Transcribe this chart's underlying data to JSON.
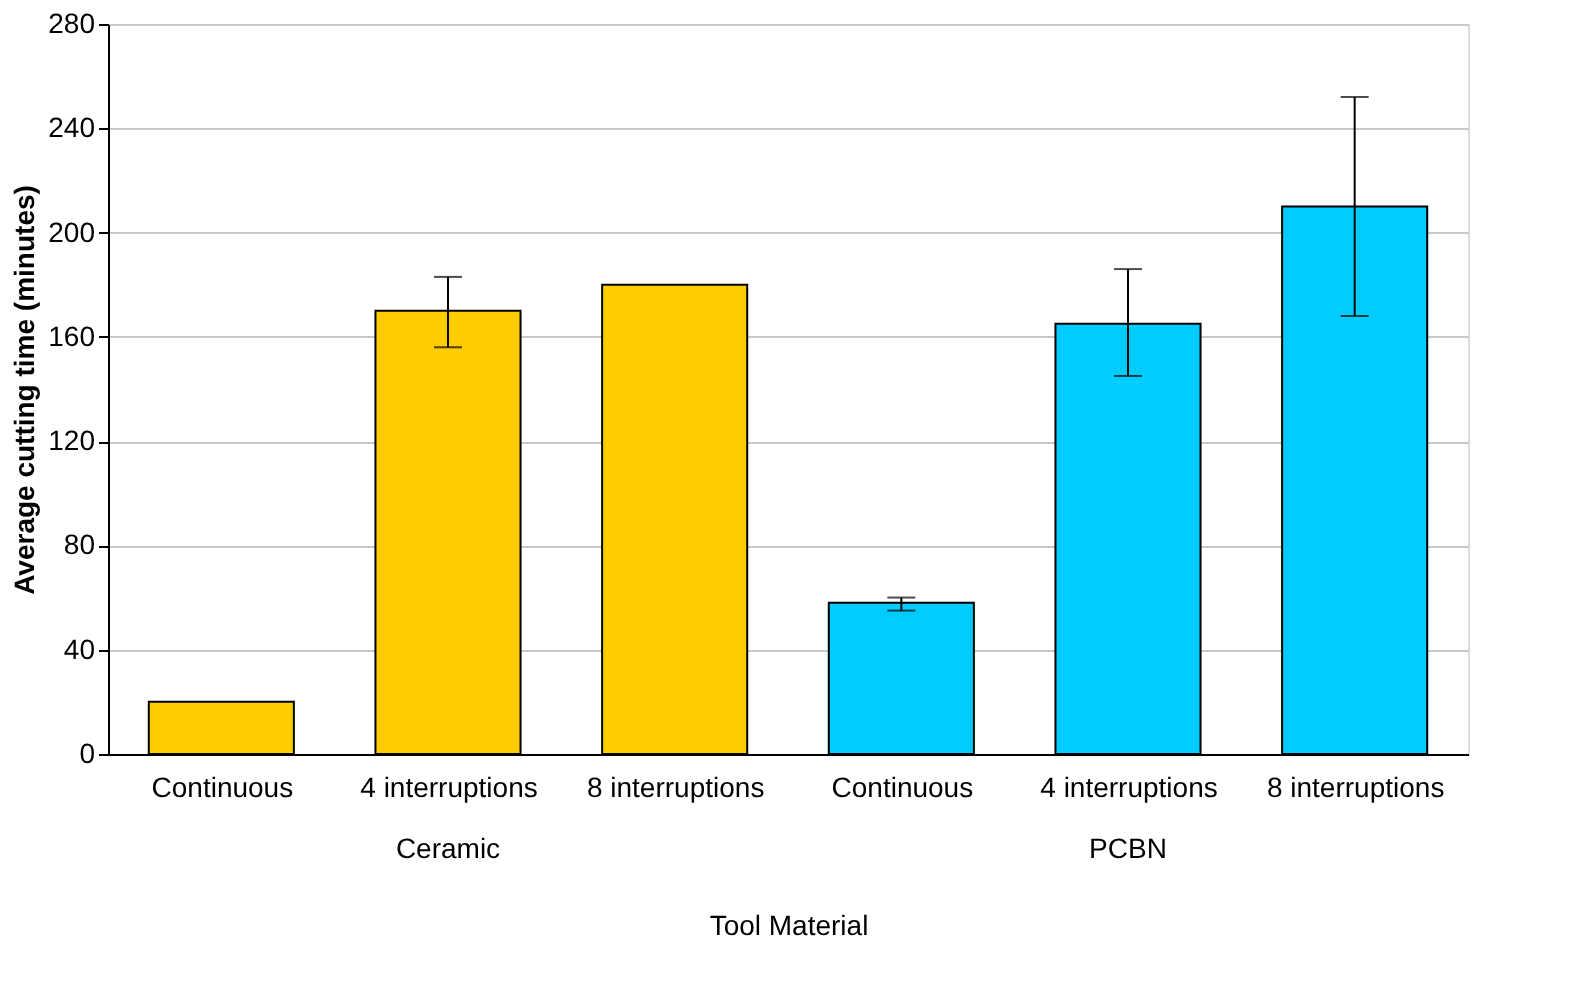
{
  "chart_data": {
    "type": "bar",
    "categories": [
      "Continuous",
      "4 interruptions",
      "8 interruptions",
      "Continuous",
      "4 interruptions",
      "8 interruptions"
    ],
    "values": [
      20,
      170,
      180,
      58,
      165,
      210
    ],
    "colors": [
      "#ffcc00",
      "#ffcc00",
      "#ffcc00",
      "#00ccff",
      "#00ccff",
      "#00ccff"
    ],
    "errors": [
      null,
      [
        156,
        183
      ],
      null,
      [
        55,
        60
      ],
      [
        145,
        186
      ],
      [
        168,
        252
      ]
    ],
    "xlabel": "Tool Material",
    "ylabel": "Average cutting time (minutes)",
    "annotations": [
      "Ceramic",
      "PCBN"
    ],
    "ylim": [
      0,
      280
    ],
    "yticks": [
      0,
      40,
      80,
      120,
      160,
      200,
      240,
      280
    ],
    "grid": "y"
  }
}
